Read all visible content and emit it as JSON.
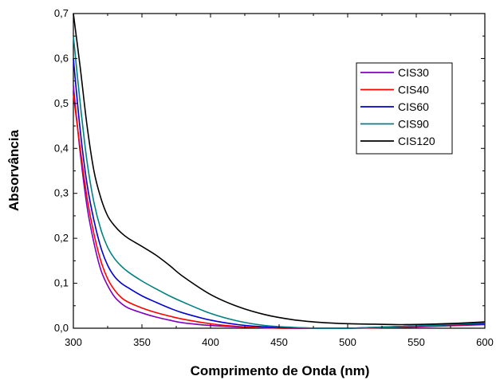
{
  "chart_data": {
    "type": "line",
    "title": "",
    "xlabel": "Comprimento de Onda (nm)",
    "ylabel": "Absorvância",
    "xlim": [
      300,
      600
    ],
    "ylim": [
      0.0,
      0.7
    ],
    "xticks": [
      "300",
      "350",
      "400",
      "450",
      "500",
      "550",
      "600"
    ],
    "yticks": [
      "0,0",
      "0,1",
      "0,2",
      "0,3",
      "0,4",
      "0,5",
      "0,6",
      "0,7"
    ],
    "grid": false,
    "legend_position": "top-right",
    "x": [
      300,
      305,
      310,
      315,
      320,
      325,
      330,
      335,
      340,
      350,
      360,
      370,
      380,
      400,
      420,
      440,
      460,
      480,
      500,
      520,
      540,
      560,
      580,
      600
    ],
    "series": [
      {
        "name": "CIS30",
        "color": "#8000c0",
        "values": [
          0.54,
          0.39,
          0.27,
          0.19,
          0.13,
          0.095,
          0.07,
          0.055,
          0.045,
          0.034,
          0.025,
          0.018,
          0.012,
          0.006,
          0.003,
          0.001,
          0.0,
          0.0,
          0.0,
          0.001,
          0.002,
          0.004,
          0.006,
          0.008
        ]
      },
      {
        "name": "CIS40",
        "color": "#ff0000",
        "values": [
          0.52,
          0.4,
          0.29,
          0.21,
          0.15,
          0.11,
          0.085,
          0.068,
          0.058,
          0.045,
          0.035,
          0.027,
          0.02,
          0.01,
          0.004,
          0.001,
          0.0,
          0.0,
          0.0,
          0.001,
          0.003,
          0.005,
          0.007,
          0.009
        ]
      },
      {
        "name": "CIS60",
        "color": "#0000d0",
        "values": [
          0.6,
          0.44,
          0.32,
          0.24,
          0.18,
          0.14,
          0.115,
          0.1,
          0.09,
          0.072,
          0.058,
          0.045,
          0.034,
          0.018,
          0.008,
          0.003,
          0.001,
          0.0,
          0.0,
          0.002,
          0.004,
          0.006,
          0.008,
          0.01
        ]
      },
      {
        "name": "CIS90",
        "color": "#008080",
        "values": [
          0.65,
          0.5,
          0.37,
          0.28,
          0.22,
          0.18,
          0.155,
          0.138,
          0.125,
          0.105,
          0.088,
          0.072,
          0.058,
          0.033,
          0.016,
          0.006,
          0.002,
          0.0,
          0.0,
          0.002,
          0.004,
          0.006,
          0.009,
          0.012
        ]
      },
      {
        "name": "CIS120",
        "color": "#000000",
        "values": [
          0.7,
          0.58,
          0.45,
          0.35,
          0.29,
          0.25,
          0.228,
          0.212,
          0.2,
          0.182,
          0.163,
          0.14,
          0.115,
          0.075,
          0.048,
          0.03,
          0.019,
          0.013,
          0.01,
          0.009,
          0.008,
          0.009,
          0.011,
          0.014
        ]
      }
    ]
  }
}
